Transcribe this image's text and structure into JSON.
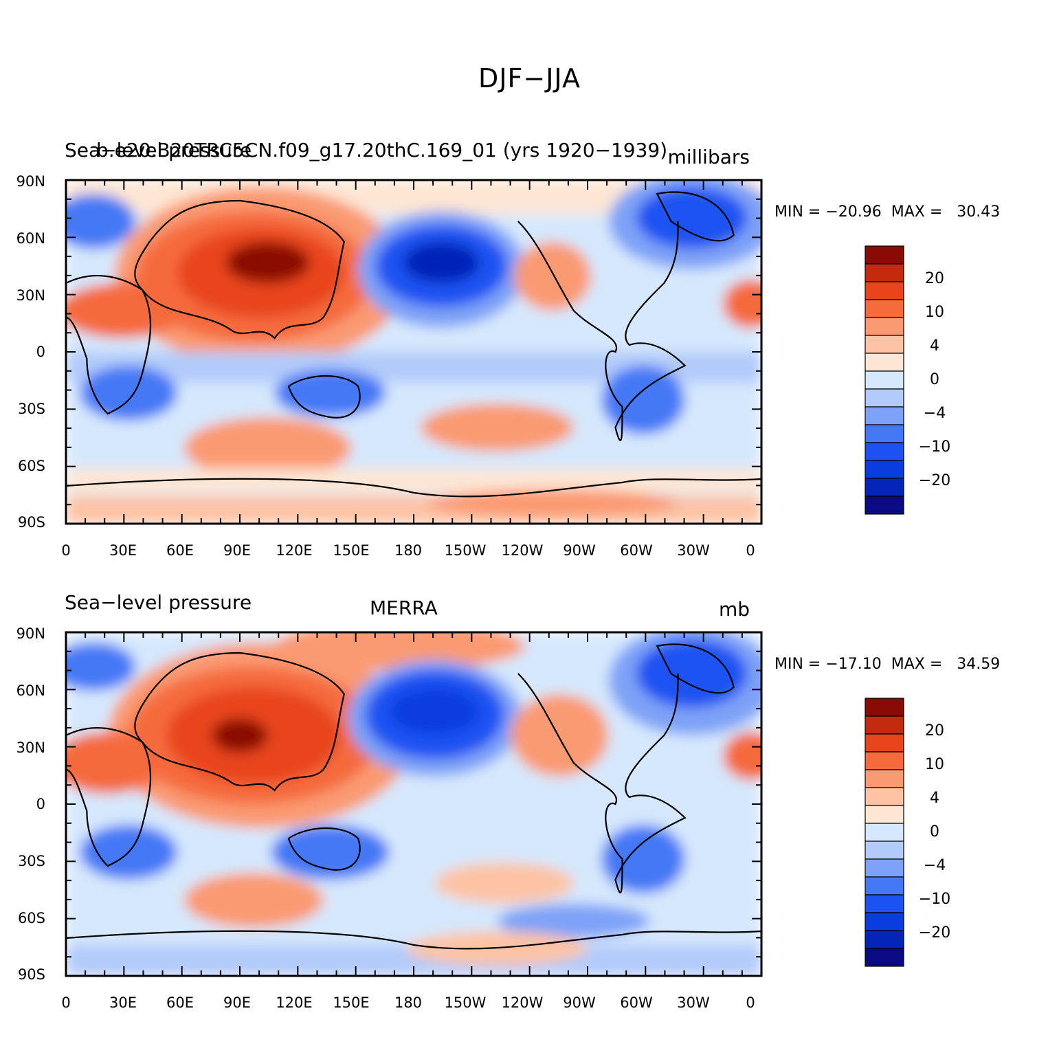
{
  "title": "DJF−JJA",
  "color_scale": [
    "#0a0a85",
    "#0524b8",
    "#0a3de0",
    "#1b52f2",
    "#4578f5",
    "#7ea2f7",
    "#b2cbfa",
    "#d6e8fd",
    "#fde6d4",
    "#fdc3a4",
    "#fa9a72",
    "#f56b3c",
    "#e8451c",
    "#c42b0c",
    "#8a0b05"
  ],
  "colorbar_labels": [
    "20",
    "10",
    "4",
    "0",
    "−4",
    "−10",
    "−20"
  ],
  "lat_labels": [
    "90N",
    "60N",
    "30N",
    "0",
    "30S",
    "60S",
    "90S"
  ],
  "lon_labels": [
    "0",
    "30E",
    "60E",
    "90E",
    "120E",
    "150E",
    "180",
    "150W",
    "120W",
    "90W",
    "60W",
    "30W",
    "0"
  ],
  "panels": [
    {
      "left_title": "Sea−level pressure",
      "center_title": "b.e20.B20TRC5CN.f09_g17.20thC.169_01 (yrs 1920−1939)",
      "right_title": "millibars",
      "minmax": "MIN = −20.96  MAX =   30.43"
    },
    {
      "left_title": "Sea−level pressure",
      "center_title": "MERRA",
      "right_title": "mb",
      "minmax": "MIN = −17.10  MAX =   34.59"
    }
  ]
}
